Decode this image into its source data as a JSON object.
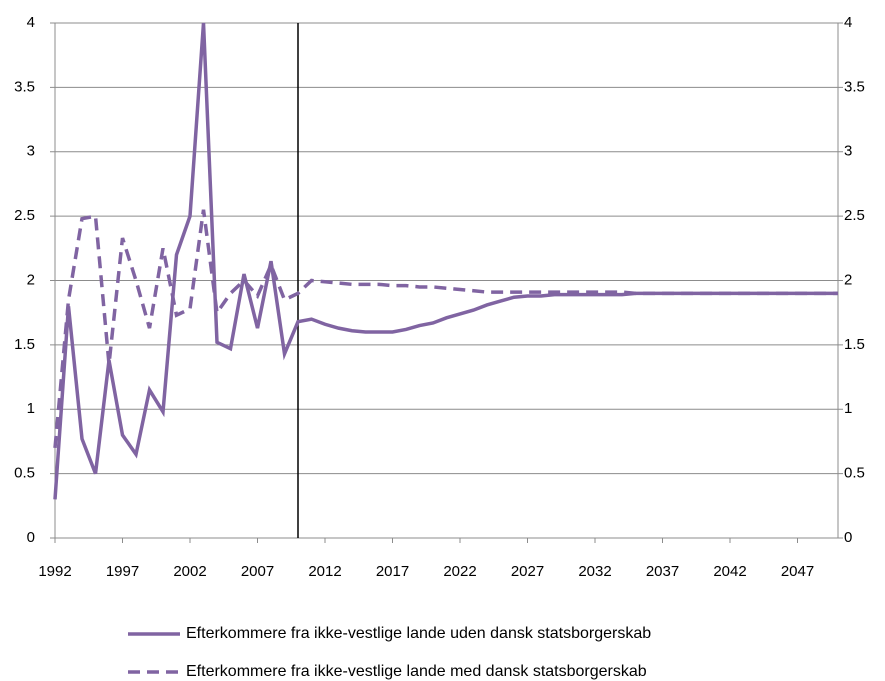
{
  "chart_data": {
    "type": "line",
    "x": [
      1992,
      1993,
      1994,
      1995,
      1996,
      1997,
      1998,
      1999,
      2000,
      2001,
      2002,
      2003,
      2004,
      2005,
      2006,
      2007,
      2008,
      2009,
      2010,
      2011,
      2012,
      2013,
      2014,
      2015,
      2016,
      2017,
      2018,
      2019,
      2020,
      2021,
      2022,
      2023,
      2024,
      2025,
      2026,
      2027,
      2028,
      2029,
      2030,
      2031,
      2032,
      2033,
      2034,
      2035,
      2036,
      2037,
      2038,
      2039,
      2040,
      2041,
      2042,
      2043,
      2044,
      2045,
      2046,
      2047,
      2048,
      2049,
      2050
    ],
    "series": [
      {
        "name": "Efterkommere fra ikke-vestlige lande uden dansk statsborgerskab",
        "color": "#8064a2",
        "dash": false,
        "values": [
          0.3,
          1.8,
          0.77,
          0.5,
          1.38,
          0.8,
          0.65,
          1.15,
          0.98,
          2.2,
          2.5,
          4.0,
          1.52,
          1.47,
          2.05,
          1.63,
          2.15,
          1.43,
          1.68,
          1.7,
          1.66,
          1.63,
          1.61,
          1.6,
          1.6,
          1.6,
          1.62,
          1.65,
          1.67,
          1.71,
          1.74,
          1.77,
          1.81,
          1.84,
          1.87,
          1.88,
          1.88,
          1.89,
          1.89,
          1.89,
          1.89,
          1.89,
          1.89,
          1.9,
          1.9,
          1.9,
          1.9,
          1.9,
          1.9,
          1.9,
          1.9,
          1.9,
          1.9,
          1.9,
          1.9,
          1.9,
          1.9,
          1.9,
          1.9
        ]
      },
      {
        "name": "Efterkommere fra ikke-vestlige lande med dansk statsborgerskab",
        "color": "#8064a2",
        "dash": true,
        "values": [
          0.7,
          1.85,
          2.48,
          2.5,
          1.35,
          2.33,
          2.0,
          1.63,
          2.25,
          1.73,
          1.78,
          2.55,
          1.75,
          1.9,
          2.0,
          1.88,
          2.12,
          1.85,
          1.9,
          2.0,
          1.99,
          1.98,
          1.97,
          1.97,
          1.97,
          1.96,
          1.96,
          1.95,
          1.95,
          1.94,
          1.93,
          1.92,
          1.91,
          1.91,
          1.91,
          1.91,
          1.91,
          1.91,
          1.91,
          1.91,
          1.91,
          1.91,
          1.91,
          1.9,
          1.9,
          1.9,
          1.9,
          1.9,
          1.9,
          1.9,
          1.9,
          1.9,
          1.9,
          1.9,
          1.9,
          1.9,
          1.9,
          1.9,
          1.9
        ]
      }
    ],
    "xlim": [
      1992,
      2050
    ],
    "xticks": [
      1992,
      1997,
      2002,
      2007,
      2012,
      2017,
      2022,
      2027,
      2032,
      2037,
      2042,
      2047
    ],
    "ylim": [
      0,
      4
    ],
    "yticks": [
      0,
      0.5,
      1,
      1.5,
      2,
      2.5,
      3,
      3.5,
      4
    ],
    "y2lim": [
      0,
      4
    ],
    "y2ticks": [
      0,
      0.5,
      1,
      1.5,
      2,
      2.5,
      3,
      3.5,
      4
    ],
    "vline": 2010,
    "grid": true,
    "legend": "bottom"
  }
}
